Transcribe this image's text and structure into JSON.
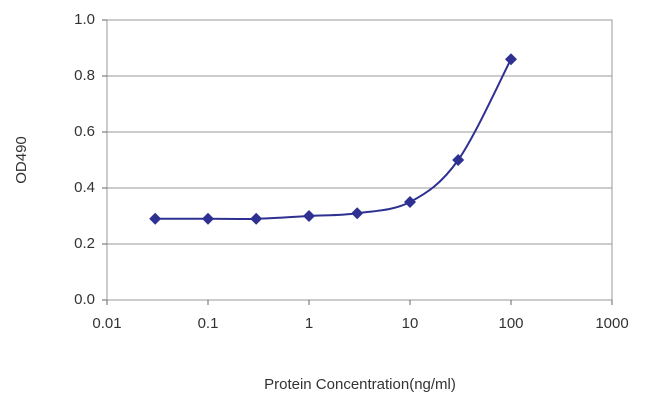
{
  "chart_data": {
    "type": "line",
    "x_label": "Protein Concentration(ng/ml)",
    "y_label": "OD490",
    "x": [
      0.03,
      0.1,
      0.3,
      1,
      3,
      10,
      30,
      100
    ],
    "series": [
      {
        "color": "#2e3192",
        "values": [
          0.29,
          0.29,
          0.29,
          0.3,
          0.31,
          0.35,
          0.5,
          0.86
        ]
      }
    ],
    "xscale": "log",
    "xlim": [
      0.01,
      1000
    ],
    "xticks": [
      0.01,
      0.1,
      1,
      10,
      100,
      1000
    ],
    "ylim": [
      0,
      1
    ],
    "yticks": [
      {
        "value": 0,
        "label": "0.0"
      },
      0.2,
      0.4,
      0.6,
      0.8,
      {
        "value": 1,
        "label": "1.0"
      }
    ],
    "grid": true
  }
}
